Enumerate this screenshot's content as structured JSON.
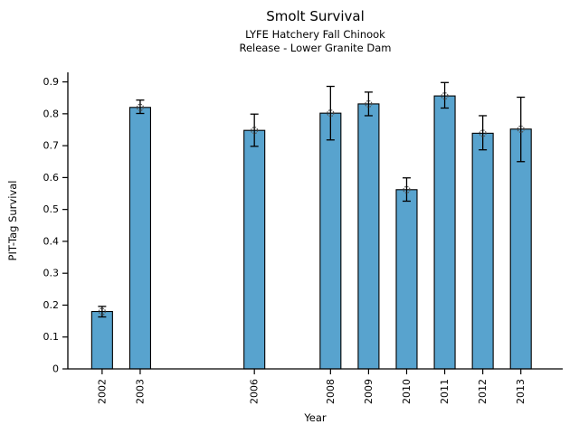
{
  "chart_data": {
    "type": "bar",
    "title": "Smolt Survival",
    "subtitle_line1": "LYFE Hatchery Fall Chinook",
    "subtitle_line2": "Release - Lower Granite Dam",
    "xlabel": "Year",
    "ylabel": "PIT-Tag Survival",
    "categories": [
      2002,
      2003,
      2006,
      2008,
      2009,
      2010,
      2011,
      2012,
      2013
    ],
    "values": [
      0.18,
      0.82,
      0.748,
      0.802,
      0.831,
      0.562,
      0.856,
      0.739,
      0.752
    ],
    "error_low": [
      0.163,
      0.801,
      0.698,
      0.718,
      0.794,
      0.526,
      0.818,
      0.687,
      0.65
    ],
    "error_high": [
      0.196,
      0.843,
      0.799,
      0.886,
      0.868,
      0.599,
      0.898,
      0.794,
      0.852
    ],
    "xlim": [
      2001.1,
      2014.1
    ],
    "ylim": [
      0,
      0.93
    ],
    "yticks": [
      0,
      0.1,
      0.2,
      0.3,
      0.4,
      0.5,
      0.6,
      0.7,
      0.8,
      0.9
    ],
    "ytick_labels": [
      "0",
      "0.1",
      "0.2",
      "0.3",
      "0.4",
      "0.5",
      "0.6",
      "0.7",
      "0.8",
      "0.9"
    ],
    "xtick_labels": [
      "2002",
      "2003",
      "2006",
      "2008",
      "2009",
      "2010",
      "2011",
      "2012",
      "2013"
    ],
    "bar_color": "#58a3ce",
    "bar_edge_color": "#000000",
    "error_color": "#000000",
    "marker_style": "open-circle-dashed",
    "marker_color": "#555555",
    "grid": false,
    "legend": null
  }
}
